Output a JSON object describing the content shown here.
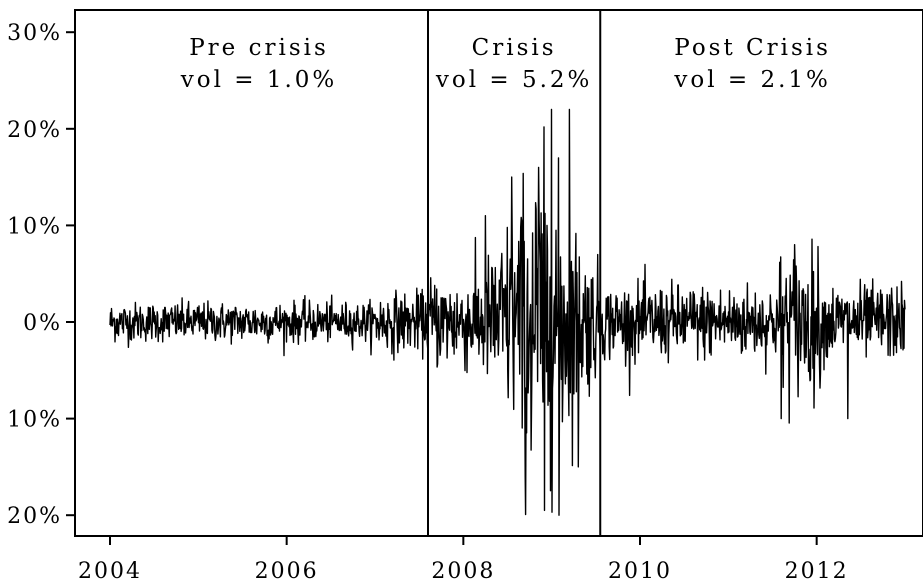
{
  "chart_data": {
    "type": "line",
    "title": "",
    "xlabel": "",
    "ylabel": "",
    "xlim": [
      2004.0,
      2013.0
    ],
    "ylim": [
      -0.21,
      0.32
    ],
    "x_ticks": [
      {
        "value": 2004,
        "label": "2004"
      },
      {
        "value": 2006,
        "label": "2006"
      },
      {
        "value": 2008,
        "label": "2008"
      },
      {
        "value": 2010,
        "label": "2010"
      },
      {
        "value": 2012,
        "label": "2012"
      }
    ],
    "y_ticks": [
      {
        "value": 0.3,
        "label": "30%"
      },
      {
        "value": 0.2,
        "label": "20%"
      },
      {
        "value": 0.1,
        "label": "10%"
      },
      {
        "value": 0.0,
        "label": "0%"
      },
      {
        "value": -0.1,
        "label": "10%"
      },
      {
        "value": -0.2,
        "label": "20%"
      }
    ],
    "regime_boundaries": [
      2007.6,
      2009.55
    ],
    "regimes": [
      {
        "name": "Pre crisis",
        "vol_label": "vol = 1.0%",
        "start": 2004.0,
        "end": 2007.6,
        "vol": 0.01
      },
      {
        "name": "Crisis",
        "vol_label": "vol = 5.2%",
        "start": 2007.6,
        "end": 2009.55,
        "vol": 0.052
      },
      {
        "name": "Post Crisis",
        "vol_label": "vol = 2.1%",
        "start": 2009.55,
        "end": 2013.0,
        "vol": 0.021
      }
    ],
    "extremes": [
      {
        "x": 2008.25,
        "y": 0.11
      },
      {
        "x": 2008.55,
        "y": 0.15
      },
      {
        "x": 2008.7,
        "y": -0.16
      },
      {
        "x": 2008.85,
        "y": 0.16
      },
      {
        "x": 2008.92,
        "y": -0.195
      },
      {
        "x": 2009.0,
        "y": 0.22
      },
      {
        "x": 2009.08,
        "y": -0.2
      },
      {
        "x": 2009.2,
        "y": 0.22
      },
      {
        "x": 2009.3,
        "y": -0.15
      },
      {
        "x": 2011.6,
        "y": -0.1
      },
      {
        "x": 2011.75,
        "y": 0.08
      },
      {
        "x": 2012.35,
        "y": -0.1
      }
    ],
    "series": [
      {
        "n_points": 1600,
        "x_start": 2004.0,
        "x_end": 2013.0
      }
    ]
  }
}
